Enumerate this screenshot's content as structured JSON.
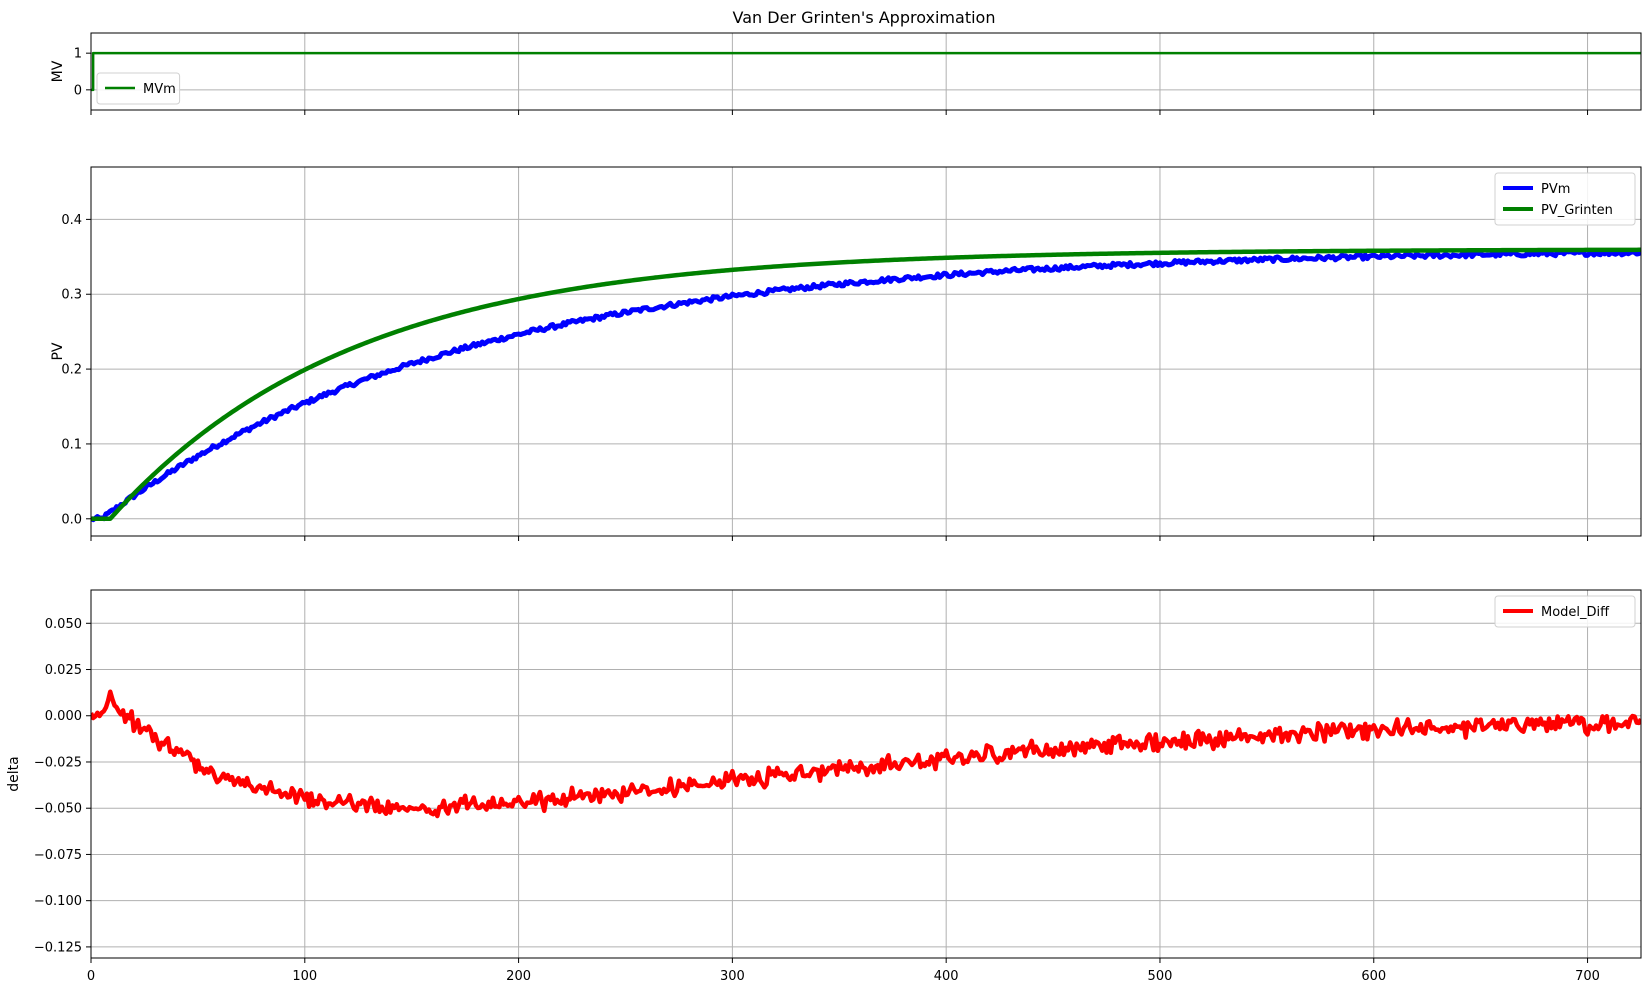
{
  "title": "Van Der Grinten's Approximation",
  "chart_data": [
    {
      "type": "line",
      "xlim": [
        0,
        725
      ],
      "ylim": [
        -0.55,
        1.55
      ],
      "xticks": [
        0,
        100,
        200,
        300,
        400,
        500,
        600,
        700
      ],
      "show_xtick_labels": false,
      "yticks": [
        0,
        1
      ],
      "ytick_labels": [
        "0",
        "1"
      ],
      "ylabel": "MV",
      "grid": true,
      "legend_position": "lower-left",
      "series": [
        {
          "name": "MVm",
          "color": "#008000",
          "linewidth": 2.5,
          "segments": [
            [
              0,
              0
            ],
            [
              1,
              0
            ],
            [
              1,
              1
            ],
            [
              725,
              1
            ]
          ]
        }
      ]
    },
    {
      "type": "line",
      "xlim": [
        0,
        725
      ],
      "ylim": [
        -0.023,
        0.47
      ],
      "xticks": [
        0,
        100,
        200,
        300,
        400,
        500,
        600,
        700
      ],
      "show_xtick_labels": false,
      "yticks": [
        0.0,
        0.1,
        0.2,
        0.3,
        0.4
      ],
      "ytick_labels": [
        "0.0",
        "0.1",
        "0.2",
        "0.3",
        "0.4"
      ],
      "ylabel": "PV",
      "grid": true,
      "legend_position": "upper-right",
      "series": [
        {
          "name": "PVm",
          "color": "#0000ff",
          "linewidth": 5,
          "noise": 0.003,
          "model": {
            "kind": "fopdt",
            "K": 0.361,
            "tau": 170,
            "theta": 5
          }
        },
        {
          "name": "PV_Grinten",
          "color": "#008000",
          "linewidth": 4.5,
          "noise": 0,
          "model": {
            "kind": "fopdt",
            "K": 0.36,
            "tau": 113,
            "theta": 9
          }
        }
      ]
    },
    {
      "type": "line",
      "xlim": [
        0,
        725
      ],
      "ylim": [
        -0.131,
        0.068
      ],
      "xticks": [
        0,
        100,
        200,
        300,
        400,
        500,
        600,
        700
      ],
      "xtick_labels": [
        "0",
        "100",
        "200",
        "300",
        "400",
        "500",
        "600",
        "700"
      ],
      "show_xtick_labels": true,
      "yticks": [
        -0.125,
        -0.1,
        -0.075,
        -0.05,
        -0.025,
        0.0,
        0.025,
        0.05
      ],
      "ytick_labels": [
        "−0.125",
        "−0.100",
        "−0.075",
        "−0.050",
        "−0.025",
        "0.000",
        "0.025",
        "0.050"
      ],
      "ylabel": "delta",
      "grid": true,
      "legend_position": "upper-right",
      "series": [
        {
          "name": "Model_Diff",
          "color": "#ff0000",
          "linewidth": 4.5,
          "noise": 0.003,
          "model": {
            "kind": "difference",
            "of": [
              "PVm",
              "PV_Grinten"
            ]
          }
        }
      ]
    }
  ]
}
